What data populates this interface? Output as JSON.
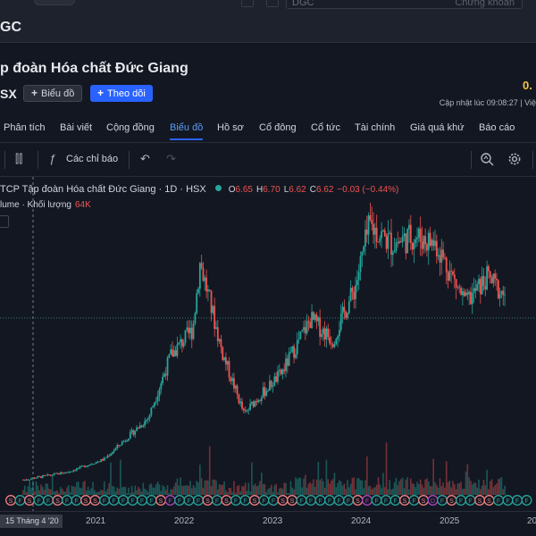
{
  "top": {
    "search_value": "DGC",
    "search_mode": "Chứng khoán"
  },
  "ticker": "GC",
  "header": {
    "company": "p đoàn Hóa chất Đức Giang",
    "exchange": "SX",
    "chart_button": "Biểu đồ",
    "follow_button": "Theo dõi",
    "price": "0.",
    "updated": "Cập nhật lúc  09:08:27 | Việ"
  },
  "tabs": [
    "Phân tích",
    "Bài viết",
    "Cộng đồng",
    "Biểu đồ",
    "Hồ sơ",
    "Cổ đông",
    "Cổ tức",
    "Tài chính",
    "Giá quá khứ",
    "Báo cáo"
  ],
  "toolbar": {
    "indicators_label": "Các chỉ báo"
  },
  "legend": {
    "title": "TCP Tập đoàn Hóa chất Đức Giang · 1D · HSX",
    "o_key": "O",
    "o_val": "6.65",
    "h_key": "H",
    "h_val": "6.70",
    "l_key": "L",
    "l_val": "6.62",
    "c_key": "C",
    "c_val": "6.62",
    "change": "−0.03 (−0.44%)",
    "volume_label": "lume · Khối lượng",
    "volume_val": "64K"
  },
  "xaxis": {
    "cursor_label": "15 Tháng 4 '20",
    "years": [
      "2021",
      "2022",
      "2023",
      "2024",
      "2025",
      "20"
    ]
  },
  "colors": {
    "up": "#26a69a",
    "down": "#ef5350",
    "accent": "#2962ff",
    "price": "#f5c242"
  },
  "chart_data": {
    "type": "line",
    "series_style": "candlestick",
    "x": [
      "2020-04",
      "2020-10",
      "2021-03",
      "2021-09",
      "2021-12",
      "2022-03",
      "2022-04",
      "2022-07",
      "2022-10",
      "2022-11",
      "2023-03",
      "2023-07",
      "2023-10",
      "2024-01",
      "2024-03",
      "2024-06",
      "2024-09",
      "2024-12",
      "2025-04",
      "2025-07",
      "2025-09"
    ],
    "y": [
      0.2,
      0.5,
      1.0,
      2.6,
      5.0,
      6.0,
      8.6,
      5.1,
      2.7,
      3.1,
      4.3,
      6.4,
      5.6,
      7.6,
      10.0,
      9.3,
      9.6,
      9.3,
      7.0,
      8.0,
      7.4
    ],
    "events_row": [
      "S",
      "F",
      "F",
      "F",
      "F",
      "S",
      "F",
      "F",
      "S",
      "F",
      "F",
      "F",
      "F",
      "F",
      "F",
      "F",
      "F",
      "D",
      "F",
      "F",
      "F"
    ]
  }
}
